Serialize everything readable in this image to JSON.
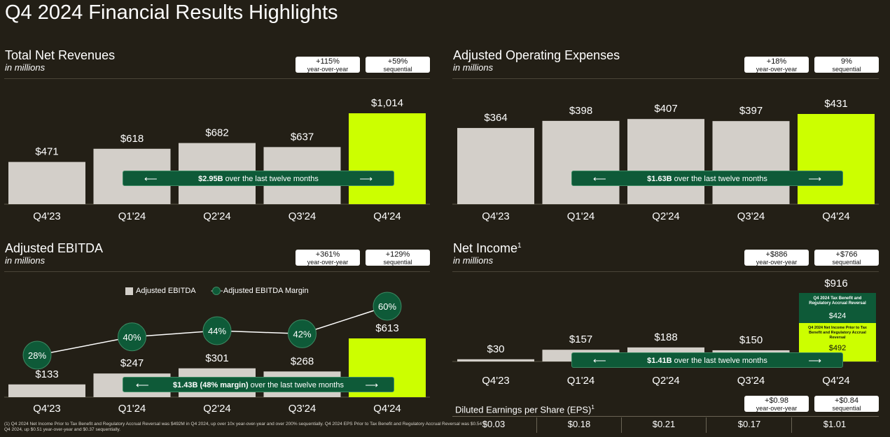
{
  "page": {
    "title": "Q4 2024 Financial Results Highlights"
  },
  "colors": {
    "background": "#231f16",
    "bar": "#d3cfc9",
    "highlight": "#ccff00",
    "green": "#0e5a38"
  },
  "panels": {
    "revenue": {
      "title": "Total Net Revenues",
      "subtitle": "in millions",
      "badge1": {
        "value": "+115%",
        "label": "year-over-year"
      },
      "badge2": {
        "value": "+59%",
        "label": "sequential"
      },
      "ttm_bold": "$2.95B",
      "ttm_rest": " over the last twelve months"
    },
    "opex": {
      "title": "Adjusted Operating Expenses",
      "subtitle": "in millions",
      "badge1": {
        "value": "+18%",
        "label": "year-over-year"
      },
      "badge2": {
        "value": "9%",
        "label": "sequential"
      },
      "ttm_bold": "$1.63B",
      "ttm_rest": " over the last twelve months"
    },
    "ebitda": {
      "title": "Adjusted EBITDA",
      "subtitle": "in millions",
      "badge1": {
        "value": "+361%",
        "label": "year-over-year"
      },
      "badge2": {
        "value": "+129%",
        "label": "sequential"
      },
      "ttm_bold": "$1.43B (48% margin)",
      "ttm_rest": " over the last twelve months",
      "legend_bar": "Adjusted EBITDA",
      "legend_line": "Adjusted EBITDA Margin"
    },
    "net_income": {
      "title": "Net Income",
      "title_sup": "1",
      "subtitle": "in millions",
      "badge1": {
        "value": "+$886",
        "label": "year-over-year"
      },
      "badge2": {
        "value": "+$766",
        "label": "sequential"
      },
      "ttm_bold": "$1.41B",
      "ttm_rest": " over the last twelve months",
      "q4_box1_label": "Q4 2024 Tax Benefit and Regulatory Accrual Reversal",
      "q4_box1_value": "$424",
      "q4_box2_label": "Q4 2024 Net Income Prior to Tax Benefit and Regulatory Accrual Reversal",
      "q4_box2_value": "$492"
    },
    "eps": {
      "title": "Diluted Earnings per Share (EPS)",
      "title_sup": "1",
      "badge1": {
        "value": "+$0.98",
        "label": "year-over-year"
      },
      "badge2": {
        "value": "+$0.84",
        "label": "sequential"
      },
      "values": [
        "$0.03",
        "$0.18",
        "$0.21",
        "$0.17",
        "$1.01"
      ]
    }
  },
  "footnote": "(1) Q4 2024 Net Income Prior to Tax Benefit and Regulatory Accrual Reversal was $492M in Q4 2024, up over 10x year-over-year and over 200% sequentially. Q4 2024 EPS Prior to Tax Benefit and Regulatory Accrual Reversal was $0.54 in Q4 2024, up $0.51 year-over-year and $0.37 sequentially.",
  "chart_data": [
    {
      "id": "revenue",
      "type": "bar",
      "title": "Total Net Revenues",
      "categories": [
        "Q4'23",
        "Q1'24",
        "Q2'24",
        "Q3'24",
        "Q4'24"
      ],
      "values": [
        471,
        618,
        682,
        637,
        1014
      ],
      "labels": [
        "$471",
        "$618",
        "$682",
        "$637",
        "$1,014"
      ],
      "highlight_index": 4
    },
    {
      "id": "opex",
      "type": "bar",
      "title": "Adjusted Operating Expenses",
      "categories": [
        "Q4'23",
        "Q1'24",
        "Q2'24",
        "Q3'24",
        "Q4'24"
      ],
      "values": [
        364,
        398,
        407,
        397,
        431
      ],
      "labels": [
        "$364",
        "$398",
        "$407",
        "$397",
        "$431"
      ],
      "highlight_index": 4
    },
    {
      "id": "ebitda",
      "type": "bar",
      "title": "Adjusted EBITDA",
      "categories": [
        "Q4'23",
        "Q1'24",
        "Q2'24",
        "Q3'24",
        "Q4'24"
      ],
      "values": [
        133,
        247,
        301,
        268,
        613
      ],
      "labels": [
        "$133",
        "$247",
        "$301",
        "$268",
        "$613"
      ],
      "highlight_index": 4,
      "margin_series": {
        "name": "Adjusted EBITDA Margin",
        "values": [
          28,
          40,
          44,
          42,
          60
        ],
        "labels": [
          "28%",
          "40%",
          "44%",
          "42%",
          "60%"
        ]
      }
    },
    {
      "id": "net_income",
      "type": "bar",
      "title": "Net Income",
      "categories": [
        "Q4'23",
        "Q1'24",
        "Q2'24",
        "Q3'24",
        "Q4'24"
      ],
      "values": [
        30,
        157,
        188,
        150,
        916
      ],
      "labels": [
        "$30",
        "$157",
        "$188",
        "$150",
        "$916"
      ],
      "highlight_index": 4,
      "q4_breakdown": [
        {
          "name": "Q4 2024 Tax Benefit and Regulatory Accrual Reversal",
          "value": 424
        },
        {
          "name": "Q4 2024 Net Income Prior to Tax Benefit and Regulatory Accrual Reversal",
          "value": 492
        }
      ]
    }
  ]
}
